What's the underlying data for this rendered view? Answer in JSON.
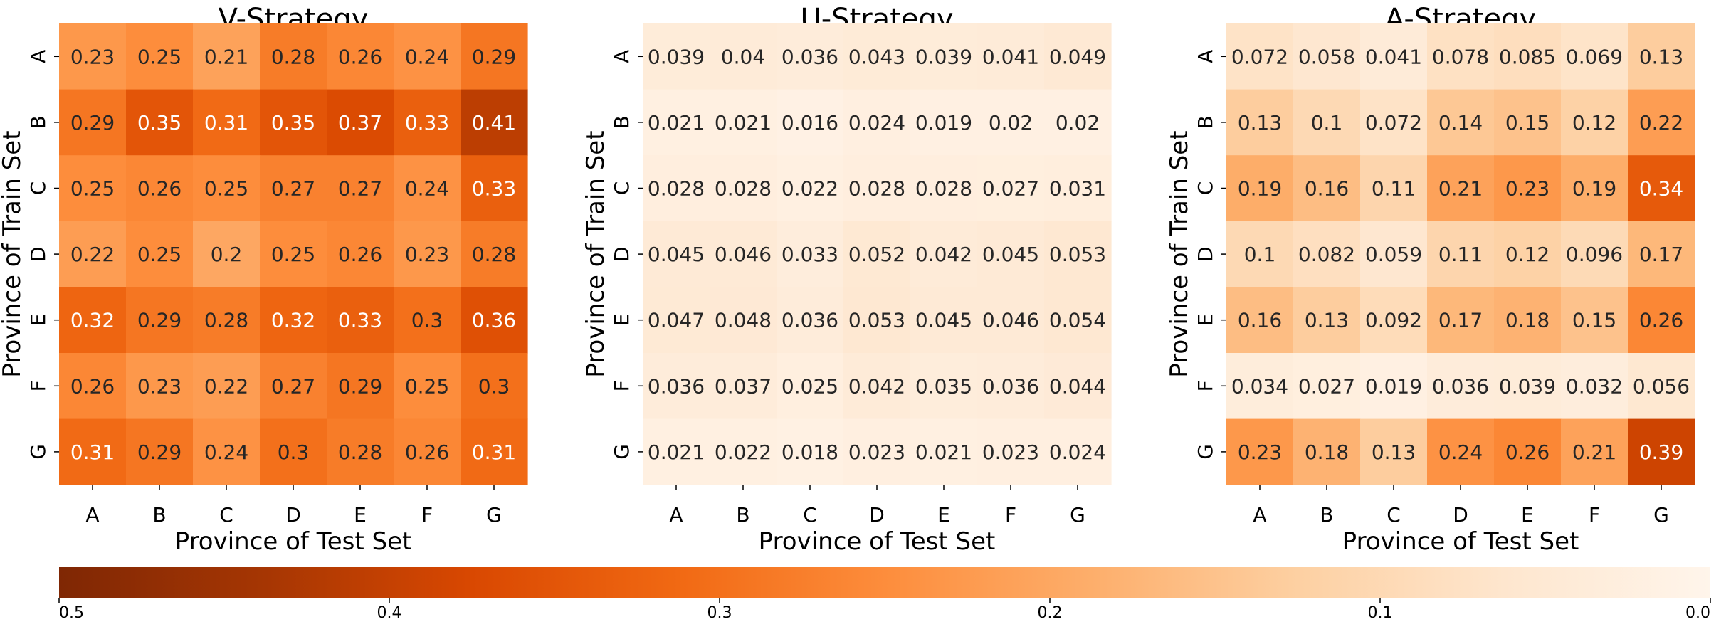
{
  "chart_data": [
    {
      "type": "heatmap",
      "title": "V-Strategy",
      "xlabel": "Province of Test Set",
      "ylabel": "Province of Train Set",
      "x_categories": [
        "A",
        "B",
        "C",
        "D",
        "E",
        "F",
        "G"
      ],
      "y_categories": [
        "A",
        "B",
        "C",
        "D",
        "E",
        "F",
        "G"
      ],
      "values": [
        [
          "0.23",
          "0.25",
          "0.21",
          "0.28",
          "0.26",
          "0.24",
          "0.29"
        ],
        [
          "0.29",
          "0.35",
          "0.31",
          "0.35",
          "0.37",
          "0.33",
          "0.41"
        ],
        [
          "0.25",
          "0.26",
          "0.25",
          "0.27",
          "0.27",
          "0.24",
          "0.33"
        ],
        [
          "0.22",
          "0.25",
          "0.2",
          "0.25",
          "0.26",
          "0.23",
          "0.28"
        ],
        [
          "0.32",
          "0.29",
          "0.28",
          "0.32",
          "0.33",
          "0.3",
          "0.36"
        ],
        [
          "0.26",
          "0.23",
          "0.22",
          "0.27",
          "0.29",
          "0.25",
          "0.3"
        ],
        [
          "0.31",
          "0.29",
          "0.24",
          "0.3",
          "0.28",
          "0.26",
          "0.31"
        ]
      ]
    },
    {
      "type": "heatmap",
      "title": "U-Strategy",
      "xlabel": "Province of Test Set",
      "ylabel": "Province of Train Set",
      "x_categories": [
        "A",
        "B",
        "C",
        "D",
        "E",
        "F",
        "G"
      ],
      "y_categories": [
        "A",
        "B",
        "C",
        "D",
        "E",
        "F",
        "G"
      ],
      "values": [
        [
          "0.039",
          "0.04",
          "0.036",
          "0.043",
          "0.039",
          "0.041",
          "0.049"
        ],
        [
          "0.021",
          "0.021",
          "0.016",
          "0.024",
          "0.019",
          "0.02",
          "0.02"
        ],
        [
          "0.028",
          "0.028",
          "0.022",
          "0.028",
          "0.028",
          "0.027",
          "0.031"
        ],
        [
          "0.045",
          "0.046",
          "0.033",
          "0.052",
          "0.042",
          "0.045",
          "0.053"
        ],
        [
          "0.047",
          "0.048",
          "0.036",
          "0.053",
          "0.045",
          "0.046",
          "0.054"
        ],
        [
          "0.036",
          "0.037",
          "0.025",
          "0.042",
          "0.035",
          "0.036",
          "0.044"
        ],
        [
          "0.021",
          "0.022",
          "0.018",
          "0.023",
          "0.021",
          "0.023",
          "0.024"
        ]
      ]
    },
    {
      "type": "heatmap",
      "title": "A-Strategy",
      "xlabel": "Province of Test Set",
      "ylabel": "Province of Train Set",
      "x_categories": [
        "A",
        "B",
        "C",
        "D",
        "E",
        "F",
        "G"
      ],
      "y_categories": [
        "A",
        "B",
        "C",
        "D",
        "E",
        "F",
        "G"
      ],
      "values": [
        [
          "0.072",
          "0.058",
          "0.041",
          "0.078",
          "0.085",
          "0.069",
          "0.13"
        ],
        [
          "0.13",
          "0.1",
          "0.072",
          "0.14",
          "0.15",
          "0.12",
          "0.22"
        ],
        [
          "0.19",
          "0.16",
          "0.11",
          "0.21",
          "0.23",
          "0.19",
          "0.34"
        ],
        [
          "0.1",
          "0.082",
          "0.059",
          "0.11",
          "0.12",
          "0.096",
          "0.17"
        ],
        [
          "0.16",
          "0.13",
          "0.092",
          "0.17",
          "0.18",
          "0.15",
          "0.26"
        ],
        [
          "0.034",
          "0.027",
          "0.019",
          "0.036",
          "0.039",
          "0.032",
          "0.056"
        ],
        [
          "0.23",
          "0.18",
          "0.13",
          "0.24",
          "0.26",
          "0.21",
          "0.39"
        ]
      ]
    }
  ],
  "colorbar": {
    "colormap": "Oranges (reversed, dark at left)",
    "vmin": 0.0,
    "vmax": 0.5,
    "tick_labels": [
      "0.5",
      "0.4",
      "0.3",
      "0.2",
      "0.1",
      "0.0"
    ],
    "colors": [
      "#fff5eb",
      "#fee6ce",
      "#fdd0a2",
      "#fdae6b",
      "#fd8d3c",
      "#f16913",
      "#d94801",
      "#a63603",
      "#7f2704"
    ]
  }
}
